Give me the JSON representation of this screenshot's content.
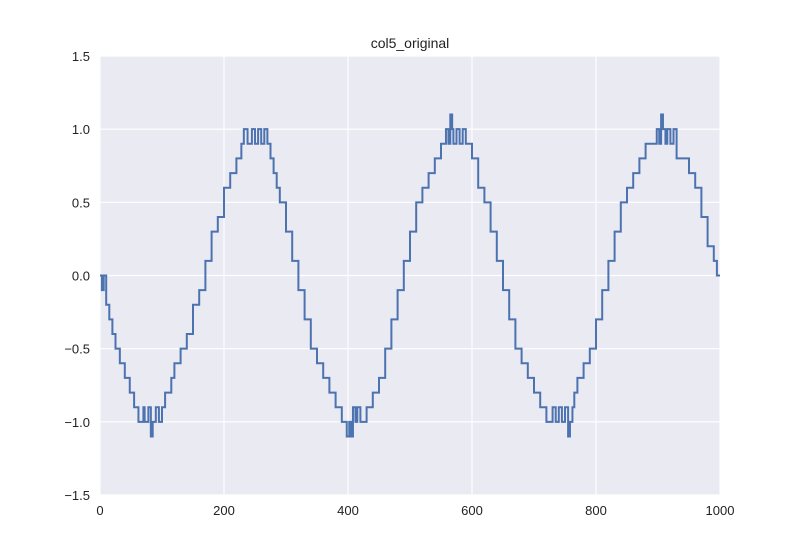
{
  "chart_data": {
    "type": "line",
    "title": "col5_original",
    "xlabel": "",
    "ylabel": "",
    "xlim": [
      0,
      1000
    ],
    "ylim": [
      -1.5,
      1.5
    ],
    "xticks": [
      0,
      200,
      400,
      600,
      800,
      1000
    ],
    "xtick_labels": [
      "0",
      "200",
      "400",
      "600",
      "800",
      "1000"
    ],
    "yticks": [
      -1.5,
      -1.0,
      -0.5,
      0.0,
      0.5,
      1.0,
      1.5
    ],
    "ytick_labels": [
      "−1.5",
      "−1.0",
      "−0.5",
      "0.0",
      "0.5",
      "1.0",
      "1.5"
    ],
    "grid": true,
    "series": [
      {
        "color": "#4c72b0",
        "x": [
          0,
          3,
          6,
          10,
          15,
          20,
          25,
          32,
          40,
          48,
          55,
          62,
          70,
          72,
          78,
          82,
          85,
          90,
          95,
          100,
          105,
          110,
          115,
          120,
          130,
          140,
          150,
          160,
          170,
          180,
          190,
          200,
          210,
          220,
          228,
          232,
          238,
          245,
          250,
          255,
          260,
          265,
          270,
          275,
          280,
          285,
          290,
          300,
          310,
          320,
          330,
          340,
          350,
          360,
          370,
          380,
          390,
          398,
          402,
          405,
          408,
          412,
          415,
          420,
          430,
          440,
          450,
          460,
          470,
          480,
          490,
          500,
          510,
          520,
          530,
          540,
          550,
          558,
          562,
          565,
          568,
          570,
          575,
          580,
          585,
          590,
          600,
          610,
          620,
          630,
          640,
          650,
          660,
          670,
          680,
          690,
          700,
          710,
          720,
          730,
          735,
          740,
          745,
          750,
          755,
          758,
          762,
          765,
          770,
          780,
          790,
          800,
          810,
          820,
          830,
          840,
          850,
          860,
          870,
          880,
          890,
          898,
          902,
          905,
          908,
          912,
          915,
          920,
          925,
          930,
          940,
          950,
          960,
          970,
          980,
          990,
          995,
          1000
        ],
        "y": [
          0.0,
          -0.1,
          0.0,
          -0.2,
          -0.3,
          -0.4,
          -0.5,
          -0.6,
          -0.7,
          -0.8,
          -0.9,
          -1.0,
          -0.9,
          -1.0,
          -0.9,
          -1.1,
          -1.0,
          -0.9,
          -1.0,
          -0.9,
          -0.8,
          -0.8,
          -0.7,
          -0.6,
          -0.5,
          -0.4,
          -0.2,
          -0.1,
          0.1,
          0.3,
          0.4,
          0.6,
          0.7,
          0.8,
          0.9,
          1.0,
          0.9,
          1.0,
          0.9,
          1.0,
          0.9,
          1.0,
          0.9,
          0.8,
          0.7,
          0.6,
          0.5,
          0.3,
          0.1,
          -0.1,
          -0.3,
          -0.5,
          -0.6,
          -0.7,
          -0.8,
          -0.9,
          -1.0,
          -1.1,
          -1.0,
          -1.1,
          -0.9,
          -1.0,
          -0.9,
          -1.0,
          -0.9,
          -0.8,
          -0.7,
          -0.5,
          -0.3,
          -0.1,
          0.1,
          0.3,
          0.5,
          0.6,
          0.7,
          0.8,
          0.9,
          1.0,
          0.9,
          1.1,
          1.0,
          0.9,
          1.0,
          0.9,
          1.0,
          0.9,
          0.8,
          0.6,
          0.5,
          0.3,
          0.1,
          -0.1,
          -0.3,
          -0.5,
          -0.6,
          -0.7,
          -0.8,
          -0.9,
          -1.0,
          -0.9,
          -1.0,
          -0.9,
          -1.0,
          -0.9,
          -1.1,
          -1.0,
          -0.9,
          -0.8,
          -0.7,
          -0.6,
          -0.5,
          -0.3,
          -0.1,
          0.1,
          0.3,
          0.5,
          0.6,
          0.7,
          0.8,
          0.9,
          0.9,
          1.0,
          0.9,
          1.1,
          1.0,
          0.9,
          1.0,
          0.9,
          1.0,
          0.8,
          0.8,
          0.7,
          0.6,
          0.4,
          0.2,
          0.1,
          0.0,
          0.0
        ]
      }
    ]
  }
}
